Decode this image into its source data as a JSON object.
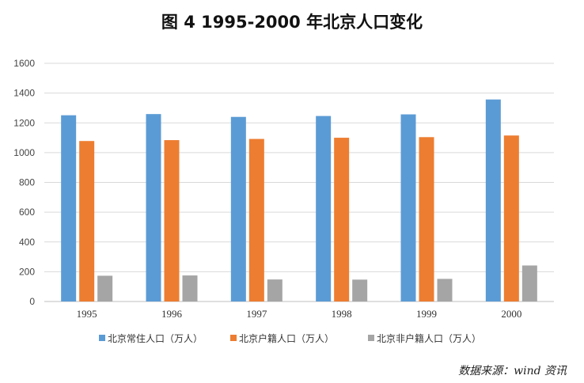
{
  "chart_data": {
    "type": "bar",
    "title": "图 4   1995-2000 年北京人口变化",
    "categories": [
      "1995",
      "1996",
      "1997",
      "1998",
      "1999",
      "2000"
    ],
    "series": [
      {
        "name": "北京常住人口（万人）",
        "color": "#5b9bd5",
        "values": [
          1251,
          1259,
          1240,
          1246,
          1257,
          1357
        ]
      },
      {
        "name": "北京户籍人口（万人）",
        "color": "#ed7d31",
        "values": [
          1078,
          1084,
          1092,
          1100,
          1104,
          1115
        ]
      },
      {
        "name": "北京非户籍人口（万人）",
        "color": "#a5a5a5",
        "values": [
          173,
          175,
          148,
          147,
          152,
          242
        ]
      }
    ],
    "ylim": [
      0,
      1600
    ],
    "yticks": [
      0,
      200,
      400,
      600,
      800,
      1000,
      1200,
      1400,
      1600
    ],
    "grid": true,
    "legend_position": "bottom"
  },
  "source": "数据来源：wind 资讯"
}
